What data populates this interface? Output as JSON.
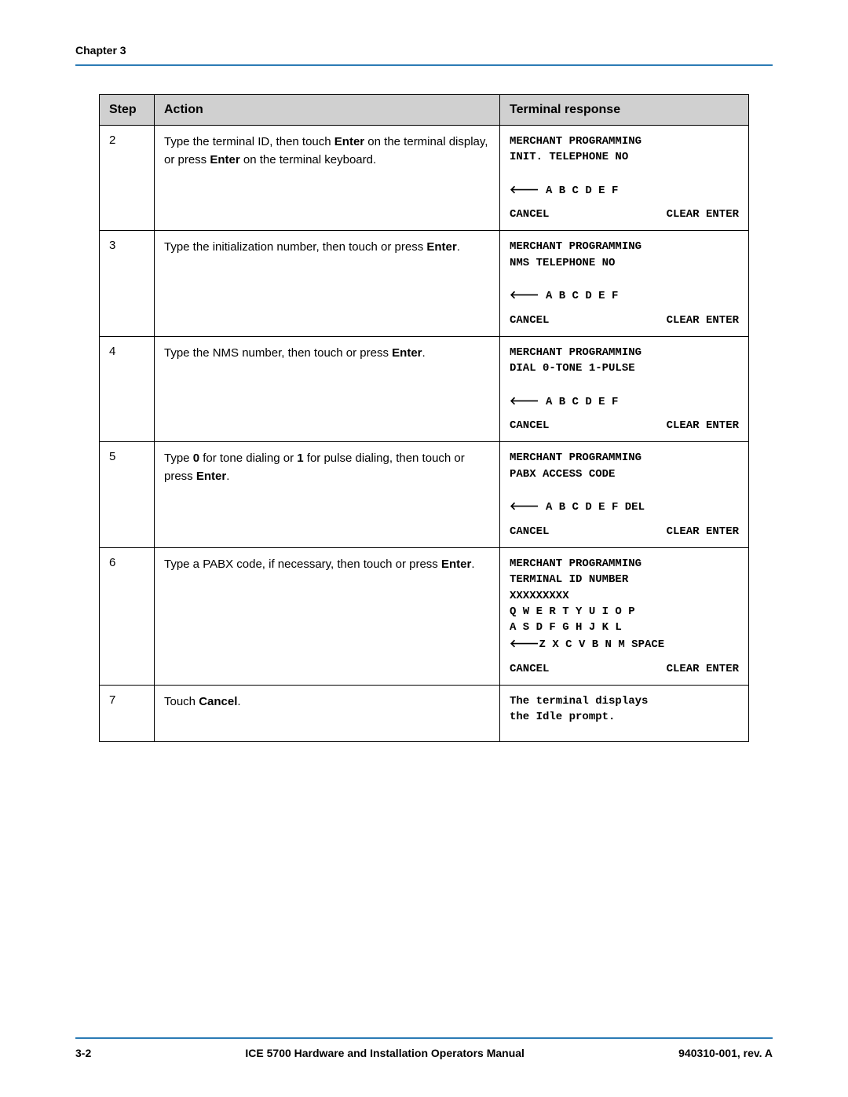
{
  "header": {
    "chapter_label": "Chapter 3"
  },
  "table": {
    "columns": {
      "step": "Step",
      "action": "Action",
      "response": "Terminal response"
    },
    "rows": [
      {
        "step": "2",
        "action_pre": "Type the terminal ID, then touch ",
        "action_b1": "Enter",
        "action_mid": " on the terminal display, or press ",
        "action_b2": "Enter",
        "action_post": " on the terminal keyboard.",
        "resp_lines": [
          "MERCHANT PROGRAMMING",
          "INIT. TELEPHONE NO",
          "",
          "← A B C D E F"
        ],
        "resp_cancel": "CANCEL",
        "resp_clear_enter": "CLEAR ENTER"
      },
      {
        "step": "3",
        "action_pre": "Type the initialization number, then touch or press ",
        "action_b1": "Enter",
        "action_mid": "",
        "action_b2": "",
        "action_post": ".",
        "resp_lines": [
          "MERCHANT PROGRAMMING",
          "NMS TELEPHONE NO",
          "",
          "← A B C D E F"
        ],
        "resp_cancel": "CANCEL",
        "resp_clear_enter": "CLEAR ENTER"
      },
      {
        "step": "4",
        "action_pre": "Type the NMS number, then touch or press ",
        "action_b1": "Enter",
        "action_mid": "",
        "action_b2": "",
        "action_post": ".",
        "resp_lines": [
          "MERCHANT PROGRAMMING",
          "DIAL 0-TONE 1-PULSE",
          "",
          "← A B C D E F"
        ],
        "resp_cancel": "CANCEL",
        "resp_clear_enter": "CLEAR ENTER"
      },
      {
        "step": "5",
        "action_pre": "Type ",
        "action_b1": "0",
        "action_mid": " for tone dialing or ",
        "action_b2": "1",
        "action_post_a": " for pulse dialing, then touch or press ",
        "action_b3": "Enter",
        "action_post": ".",
        "resp_lines": [
          "MERCHANT PROGRAMMING",
          "PABX ACCESS CODE",
          "",
          "← A B C D E F DEL"
        ],
        "resp_cancel": "CANCEL",
        "resp_clear_enter": "CLEAR ENTER"
      },
      {
        "step": "6",
        "action_pre": "Type a PABX code, if necessary, then touch or press ",
        "action_b1": "Enter",
        "action_mid": "",
        "action_b2": "",
        "action_post": ".",
        "resp_lines": [
          "MERCHANT PROGRAMMING",
          "TERMINAL ID NUMBER",
          "XXXXXXXXX",
          "Q W E R T Y U I O P",
          "A S D F G H J K L",
          "←Z X C V B N M SPACE"
        ],
        "resp_cancel": "CANCEL",
        "resp_clear_enter": "CLEAR ENTER"
      },
      {
        "step": "7",
        "action_pre": "Touch ",
        "action_b1": "Cancel",
        "action_mid": "",
        "action_b2": "",
        "action_post": ".",
        "resp_lines": [
          "The terminal displays",
          "the Idle prompt."
        ],
        "resp_cancel": "",
        "resp_clear_enter": ""
      }
    ]
  },
  "footer": {
    "page_num": "3-2",
    "manual_title": "ICE 5700 Hardware and Installation Operators Manual",
    "doc_rev": "940310-001, rev. A"
  },
  "colors": {
    "rule": "#2b7bb5",
    "header_bg": "#d0d0d0",
    "text": "#000000",
    "page_bg": "#ffffff"
  }
}
